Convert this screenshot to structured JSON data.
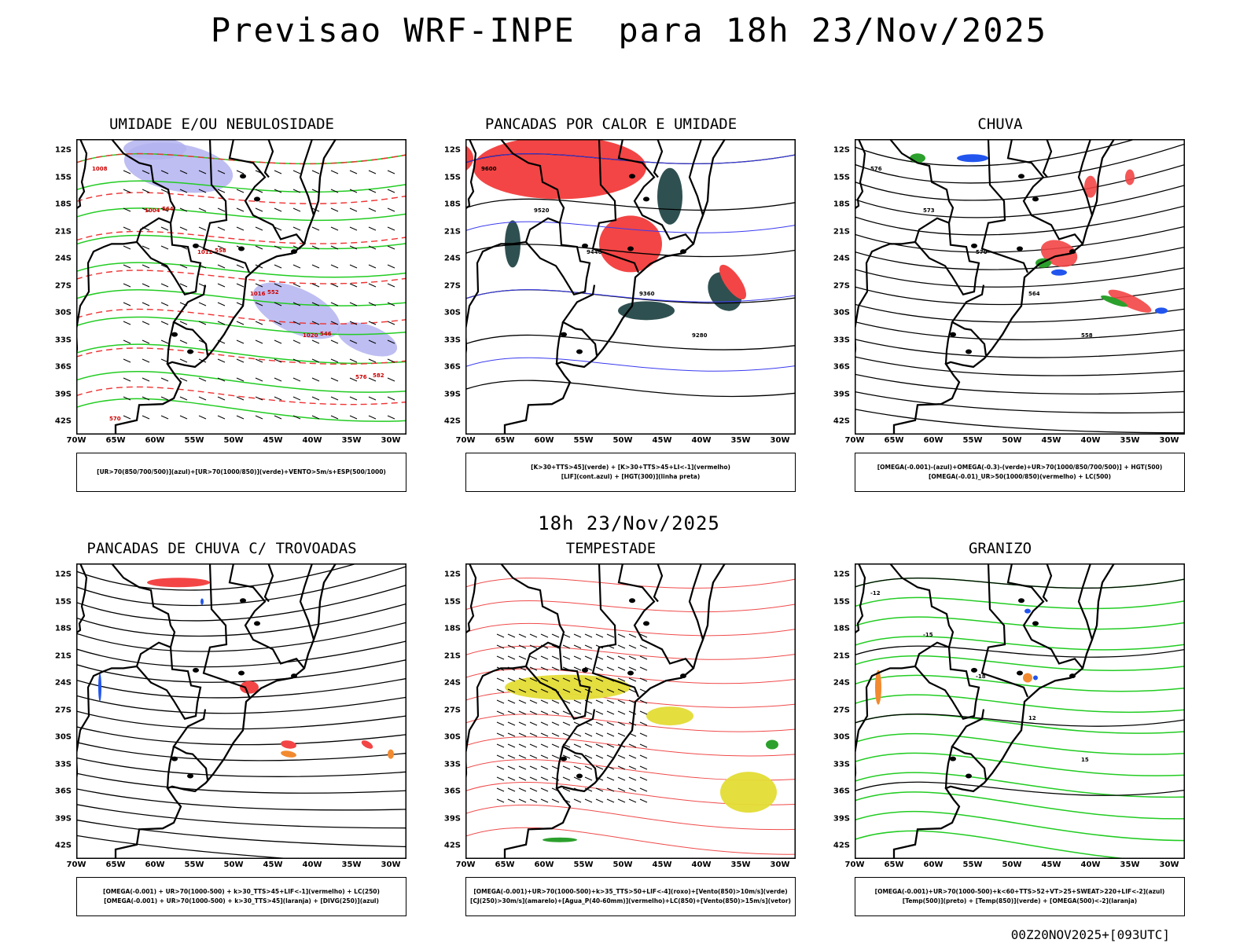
{
  "main_title": "Previsao WRF-INPE  para 18h 23/Nov/2025",
  "mid_title": "18h 23/Nov/2025",
  "footer": "00Z20NOV2025+[093UTC]",
  "lat_labels": [
    "12S",
    "15S",
    "18S",
    "21S",
    "24S",
    "27S",
    "30S",
    "33S",
    "36S",
    "39S",
    "42S"
  ],
  "lon_labels": [
    "70W",
    "65W",
    "60W",
    "55W",
    "50W",
    "45W",
    "40W",
    "35W",
    "30W"
  ],
  "panels": [
    {
      "title": "UMIDADE E/OU NEBULOSIDADE",
      "legend": [
        "[UR>70(850/700/500)](azul)+[UR>70(1000/850)](verde)+VENTO>5m/s+ESP(500/1000)"
      ],
      "contour_labels": [
        "1008",
        "1004",
        "1012",
        "1016",
        "1020",
        "576",
        "570",
        "564",
        "558",
        "552",
        "546",
        "582"
      ]
    },
    {
      "title": "PANCADAS POR CALOR E UMIDADE",
      "legend": [
        "[K>30+TTS>45](verde) + [K>30+TTS>45+LI<-1](vermelho)",
        "[LIF](cont.azul) + [HGT(300)](linha preta)"
      ],
      "contour_labels": [
        "9600",
        "9520",
        "9440",
        "9360",
        "9280"
      ]
    },
    {
      "title": "CHUVA",
      "legend": [
        "[OMEGA(-0.001)-(azul)+OMEGA(-0.3)-(verde)+UR>70(1000/850/700/500)] + HGT(500)",
        "[OMEGA(-0.01)_UR>50(1000/850)(vermelho) + LC(500)"
      ],
      "contour_labels": [
        "576",
        "573",
        "570",
        "564",
        "558"
      ]
    },
    {
      "title": "PANCADAS DE CHUVA C/ TROVOADAS",
      "legend": [
        "[OMEGA(-0.001) + UR>70(1000-500) + k>30_TTS>45+LIF<-1](vermelho) + LC(250)",
        "[OMEGA(-0.001) + UR>70(1000-500) + k>30_TTS>45](laranja) + [DIVG(250)](azul)"
      ],
      "contour_labels": []
    },
    {
      "title": "TEMPESTADE",
      "legend": [
        "[OMEGA(-0.001)+UR>70(1000-500)+k>35_TTS>50+LIF<-4](roxo)+[Vento(850)>10m/s](verde)",
        "[CJ(250)>30m/s](amarelo)+[Agua_P(40-60mm)](vermelho)+LC(850)+[Vento(850)>15m/s](vetor)"
      ],
      "contour_labels": []
    },
    {
      "title": "GRANIZO",
      "legend": [
        "[OMEGA(-0.001)+UR>70(1000-500)+k<60+TTS>52+VT>25+SWEAT>220+LIF<-2](azul)",
        "[Temp(500)](preto) + [Temp(850)](verde) + [OMEGA(500)<-2](laranja)"
      ],
      "contour_labels": [
        "-12",
        "-15",
        "-18",
        "12",
        "15"
      ]
    }
  ]
}
